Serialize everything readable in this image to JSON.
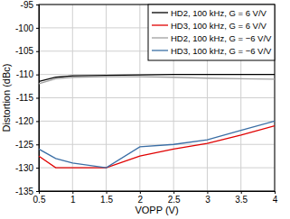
{
  "chart_data": {
    "type": "line",
    "x_label": "VOPP (V)",
    "y_label": "Distortion (dBc)",
    "x": [
      0.5,
      0.75,
      1,
      1.5,
      2,
      2.5,
      3,
      3.5,
      4
    ],
    "series": [
      {
        "name": "HD2, 100 kHz, G = 6 V/V",
        "color": "#000000",
        "values": [
          -111.5,
          -110.6,
          -110.3,
          -110.2,
          -110.1,
          -110.0,
          -110.0,
          -110.0,
          -110.0
        ]
      },
      {
        "name": "HD3, 100 kHz, G = 6 V/V",
        "color": "#e00000",
        "values": [
          -127.5,
          -130.0,
          -130.0,
          -130.0,
          -127.5,
          -126.0,
          -124.8,
          -123.0,
          -121.0
        ]
      },
      {
        "name": "HD2, 100 kHz, G = −6 V/V",
        "color": "#a0a0a0",
        "values": [
          -112.0,
          -110.9,
          -110.6,
          -110.5,
          -110.5,
          -110.6,
          -110.8,
          -110.9,
          -111.0
        ]
      },
      {
        "name": "HD3, 100 kHz, G = −6 V/V",
        "color": "#3a6ea5",
        "values": [
          -126.0,
          -128.0,
          -129.0,
          -130.0,
          -125.5,
          -125.0,
          -124.0,
          -122.0,
          -120.0
        ]
      }
    ],
    "xlim": [
      0.5,
      4
    ],
    "xticks": [
      0.5,
      1,
      1.5,
      2,
      2.5,
      3,
      3.5,
      4
    ],
    "ylim": [
      -135,
      -95
    ],
    "yticks": [
      -135,
      -130,
      -125,
      -120,
      -115,
      -110,
      -105,
      -100,
      -95
    ],
    "grid": true,
    "legend": "top-right"
  }
}
